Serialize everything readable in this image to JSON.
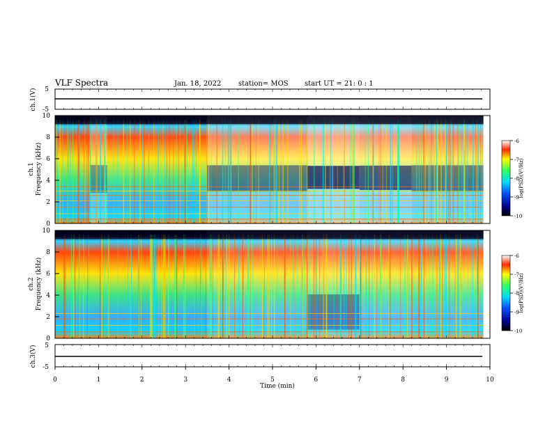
{
  "header": {
    "title": "VLF Spectra",
    "date": "Jan. 18, 2022",
    "station": "station= MOS",
    "start": "start  UT =   21: 0  : 1"
  },
  "chart_data": [
    {
      "type": "line",
      "panel": "ch1-waveform",
      "ylabel": "ch.1(V)",
      "ylim": [
        -5,
        5
      ],
      "yticks": [
        "5",
        "-5"
      ],
      "x": [
        0,
        10
      ],
      "values": [
        0,
        0
      ]
    },
    {
      "type": "heatmap",
      "panel": "ch1-spectrogram",
      "ylabel": "ch.1\nFrequency (kHz)",
      "ylabel_lines": [
        "ch.1",
        "Frequency (kHz)"
      ],
      "xlim": [
        0,
        10
      ],
      "ylim": [
        0,
        10
      ],
      "yticks": [
        "0",
        "2",
        "4",
        "6",
        "8",
        "10"
      ],
      "colorbar": {
        "label": "log(PSD)(V²/Hz)",
        "range": [
          -10,
          -6
        ],
        "ticks": [
          "-6",
          "-7",
          "-8",
          "-9",
          "-10"
        ]
      },
      "activity_segments": [
        {
          "x": [
            0.0,
            0.8
          ],
          "level": 0.9
        },
        {
          "x": [
            0.8,
            1.2
          ],
          "level": 0.55
        },
        {
          "x": [
            1.2,
            3.5
          ],
          "level": 0.85
        },
        {
          "x": [
            3.5,
            5.8
          ],
          "level": 0.45
        },
        {
          "x": [
            5.8,
            7.0
          ],
          "level": 0.2
        },
        {
          "x": [
            7.0,
            8.2
          ],
          "level": 0.3
        },
        {
          "x": [
            8.2,
            9.85
          ],
          "level": 0.45
        }
      ]
    },
    {
      "type": "heatmap",
      "panel": "ch2-spectrogram",
      "ylabel": "ch.2\nFrequency (kHz)",
      "ylabel_lines": [
        "ch.2",
        "Frequency (kHz)"
      ],
      "xlim": [
        0,
        10
      ],
      "ylim": [
        0,
        10
      ],
      "yticks": [
        "0",
        "2",
        "4",
        "6",
        "8",
        "10"
      ],
      "colorbar": {
        "label": "log(PSD)(V²/Hz)",
        "range": [
          -10,
          -6
        ],
        "ticks": [
          "-6",
          "-7",
          "-8",
          "-9",
          "-10"
        ]
      },
      "activity_segments": [
        {
          "x": [
            0.0,
            1.2
          ],
          "level": 0.9
        },
        {
          "x": [
            1.2,
            3.5
          ],
          "level": 0.9
        },
        {
          "x": [
            3.5,
            5.8
          ],
          "level": 0.7
        },
        {
          "x": [
            5.8,
            7.0
          ],
          "level": 0.55
        },
        {
          "x": [
            7.0,
            8.2
          ],
          "level": 0.65
        },
        {
          "x": [
            8.2,
            9.85
          ],
          "level": 0.7
        }
      ]
    },
    {
      "type": "line",
      "panel": "ch3-waveform",
      "ylabel": "ch.3(V)",
      "ylim": [
        -5,
        5
      ],
      "yticks": [
        "5",
        "-5"
      ],
      "x": [
        0,
        10
      ],
      "values": [
        0,
        0
      ]
    }
  ],
  "xaxis": {
    "label": "Time (min)",
    "ticks": [
      "0",
      "1",
      "2",
      "3",
      "4",
      "5",
      "6",
      "7",
      "8",
      "9",
      "10"
    ]
  }
}
